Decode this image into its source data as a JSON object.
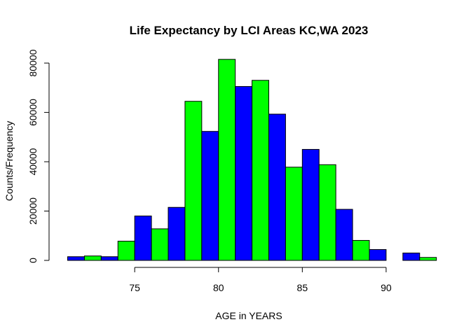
{
  "chart_data": {
    "type": "bar",
    "title": "Life Expectancy by  LCI Areas KC,WA 2023",
    "xlabel": "AGE in YEARS",
    "ylabel": "Counts/Frequency",
    "xlim": [
      70.1,
      93.6
    ],
    "ylim": [
      0,
      84000
    ],
    "x_ticks": [
      75,
      80,
      85,
      90
    ],
    "y_ticks": [
      0,
      20000,
      40000,
      60000,
      80000
    ],
    "bin_width": 1,
    "bins_start": [
      71,
      72,
      73,
      74,
      75,
      76,
      77,
      78,
      79,
      80,
      81,
      82,
      83,
      84,
      85,
      86,
      87,
      88,
      89,
      90,
      91,
      92
    ],
    "values": [
      1500,
      1800,
      1500,
      7800,
      18000,
      12800,
      21500,
      64500,
      52300,
      81500,
      70500,
      73000,
      59300,
      37800,
      45000,
      38800,
      20700,
      8100,
      4400,
      0,
      3000,
      1200
    ],
    "colors": [
      "#0000FF",
      "#00FF00"
    ],
    "legend": "none",
    "grid": false
  }
}
